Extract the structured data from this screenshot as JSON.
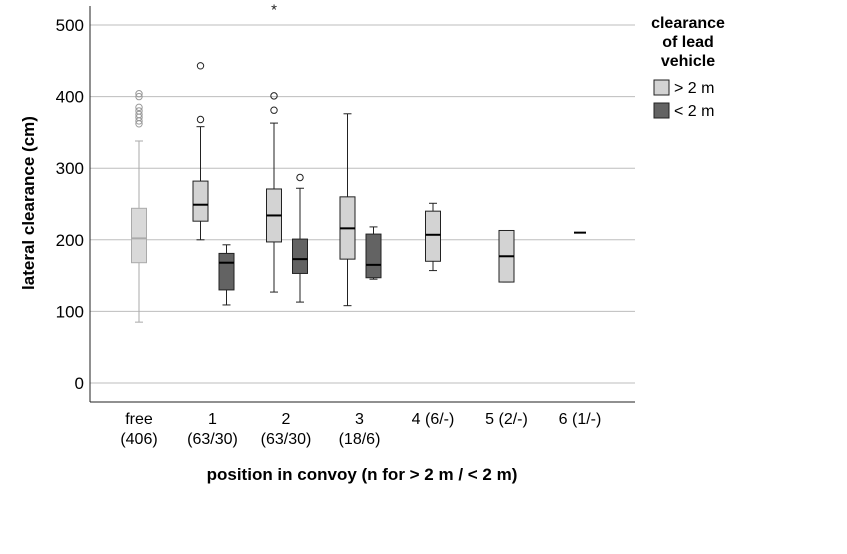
{
  "chart_data": {
    "type": "box",
    "xlabel": "position in convoy (n for > 2 m / < 2 m)",
    "ylabel": "lateral clearance (cm)",
    "ylim": [
      -30,
      530
    ],
    "yticks": [
      0,
      100,
      200,
      300,
      400,
      500
    ],
    "grid": true,
    "legend": {
      "title_lines": [
        "clearance",
        "of lead",
        "vehicle"
      ],
      "position": "right",
      "entries": [
        {
          "label": "> 2 m",
          "color": "#d3d3d3"
        },
        {
          "label": "< 2 m",
          "color": "#636363"
        }
      ]
    },
    "categories": [
      {
        "label_lines": [
          "free",
          "(406)"
        ]
      },
      {
        "label_lines": [
          "1",
          "(63/30)"
        ]
      },
      {
        "label_lines": [
          "2",
          "(63/30)"
        ]
      },
      {
        "label_lines": [
          "3",
          "(18/6)"
        ]
      },
      {
        "label_lines": [
          "4 (6/-)"
        ]
      },
      {
        "label_lines": [
          "5 (2/-)"
        ]
      },
      {
        "label_lines": [
          "6 (1/-)"
        ]
      }
    ],
    "series": [
      {
        "name": "> 2 m",
        "boxes": [
          {
            "category": 0,
            "min": 85,
            "q1": 168,
            "median": 202,
            "q3": 244,
            "max": 338,
            "outliers": [
              362,
              366,
              371,
              375,
              380,
              385,
              400,
              404
            ],
            "extremes": [],
            "style": "faded"
          },
          {
            "category": 1,
            "min": 200,
            "q1": 226,
            "median": 249,
            "q3": 282,
            "max": 358,
            "outliers": [
              368,
              443
            ],
            "extremes": []
          },
          {
            "category": 2,
            "min": 127,
            "q1": 197,
            "median": 234,
            "q3": 271,
            "max": 363,
            "outliers": [
              381,
              401
            ],
            "extremes": [
              526
            ]
          },
          {
            "category": 3,
            "min": 108,
            "q1": 173,
            "median": 216,
            "q3": 260,
            "max": 376,
            "outliers": [],
            "extremes": []
          },
          {
            "category": 4,
            "min": 157,
            "q1": 170,
            "median": 207,
            "q3": 240,
            "max": 251,
            "outliers": [],
            "extremes": []
          },
          {
            "category": 5,
            "min": 141,
            "q1": 141,
            "median": 177,
            "q3": 213,
            "max": 213,
            "outliers": [],
            "extremes": []
          },
          {
            "category": 6,
            "min": 210,
            "q1": 210,
            "median": 210,
            "q3": 210,
            "max": 210,
            "outliers": [],
            "extremes": []
          }
        ]
      },
      {
        "name": "< 2 m",
        "boxes": [
          {
            "category": 1,
            "min": 109,
            "q1": 130,
            "median": 168,
            "q3": 181,
            "max": 193,
            "outliers": [],
            "extremes": []
          },
          {
            "category": 2,
            "min": 113,
            "q1": 153,
            "median": 173,
            "q3": 201,
            "max": 272,
            "outliers": [
              287
            ],
            "extremes": []
          },
          {
            "category": 3,
            "min": 145,
            "q1": 147,
            "median": 165,
            "q3": 208,
            "max": 218,
            "outliers": [],
            "extremes": []
          }
        ]
      }
    ]
  }
}
